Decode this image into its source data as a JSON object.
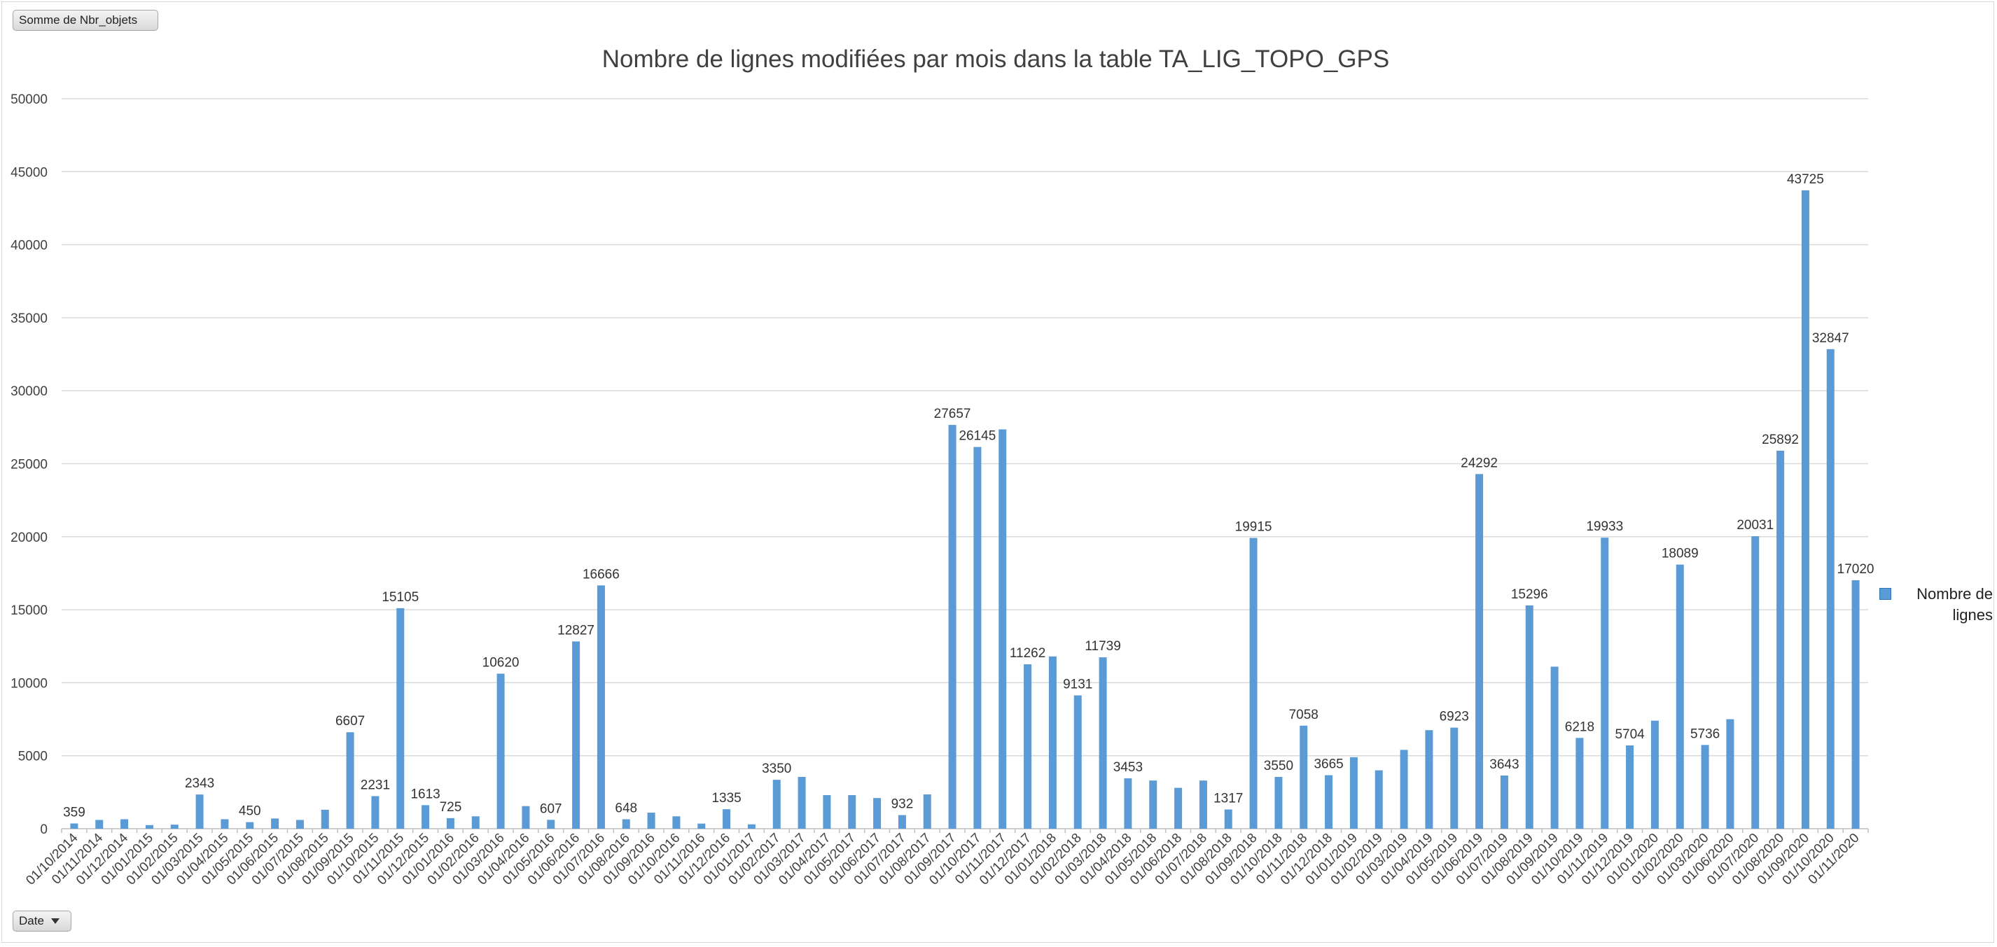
{
  "pivot": {
    "value_field_label": "Somme de Nbr_objets",
    "axis_field_label": "Date"
  },
  "colors": {
    "bar": "#5b9bd5",
    "grid": "#d9d9d9",
    "text": "#404040"
  },
  "chart_data": {
    "type": "bar",
    "title": "Nombre de lignes modifiées par mois dans la table TA_LIG_TOPO_GPS",
    "xlabel": "",
    "ylabel": "",
    "ylim": [
      0,
      50000
    ],
    "yticks": [
      0,
      5000,
      10000,
      15000,
      20000,
      25000,
      30000,
      35000,
      40000,
      45000,
      50000
    ],
    "grid": true,
    "legend_position": "right",
    "categories": [
      "01/10/2014",
      "01/11/2014",
      "01/12/2014",
      "01/01/2015",
      "01/02/2015",
      "01/03/2015",
      "01/04/2015",
      "01/05/2015",
      "01/06/2015",
      "01/07/2015",
      "01/08/2015",
      "01/09/2015",
      "01/10/2015",
      "01/11/2015",
      "01/12/2015",
      "01/01/2016",
      "01/02/2016",
      "01/03/2016",
      "01/04/2016",
      "01/05/2016",
      "01/06/2016",
      "01/07/2016",
      "01/08/2016",
      "01/09/2016",
      "01/10/2016",
      "01/11/2016",
      "01/12/2016",
      "01/01/2017",
      "01/02/2017",
      "01/03/2017",
      "01/04/2017",
      "01/05/2017",
      "01/06/2017",
      "01/07/2017",
      "01/08/2017",
      "01/09/2017",
      "01/10/2017",
      "01/11/2017",
      "01/12/2017",
      "01/01/2018",
      "01/02/2018",
      "01/03/2018",
      "01/04/2018",
      "01/05/2018",
      "01/06/2018",
      "01/07/2018",
      "01/08/2018",
      "01/09/2018",
      "01/10/2018",
      "01/11/2018",
      "01/12/2018",
      "01/01/2019",
      "01/02/2019",
      "01/03/2019",
      "01/04/2019",
      "01/05/2019",
      "01/06/2019",
      "01/07/2019",
      "01/08/2019",
      "01/09/2019",
      "01/10/2019",
      "01/11/2019",
      "01/12/2019",
      "01/01/2020",
      "01/02/2020",
      "01/03/2020",
      "01/06/2020",
      "01/07/2020",
      "01/08/2020",
      "01/09/2020",
      "01/10/2020",
      "01/11/2020"
    ],
    "series": [
      {
        "name": "Nombre de lignes",
        "values": [
          359,
          600,
          650,
          250,
          280,
          2343,
          650,
          450,
          700,
          600,
          1300,
          6607,
          2231,
          15105,
          1613,
          725,
          850,
          10620,
          1550,
          607,
          12827,
          16666,
          648,
          1100,
          850,
          350,
          1335,
          300,
          3350,
          3550,
          2300,
          2300,
          2100,
          932,
          2350,
          27657,
          26145,
          27350,
          11262,
          11800,
          9131,
          11739,
          3453,
          3300,
          2800,
          3300,
          1317,
          19915,
          3550,
          7058,
          3665,
          4900,
          4000,
          5400,
          6750,
          6923,
          24292,
          3643,
          15296,
          11100,
          6218,
          19933,
          5704,
          7400,
          18089,
          5736,
          7500,
          20031,
          25892,
          43725,
          32847,
          17020
        ]
      }
    ],
    "data_labels": [
      359,
      null,
      null,
      null,
      null,
      2343,
      null,
      450,
      null,
      null,
      null,
      6607,
      2231,
      15105,
      1613,
      725,
      null,
      10620,
      null,
      607,
      12827,
      16666,
      648,
      null,
      null,
      null,
      1335,
      null,
      3350,
      null,
      null,
      null,
      null,
      932,
      null,
      27657,
      26145,
      null,
      11262,
      null,
      9131,
      11739,
      3453,
      null,
      null,
      null,
      1317,
      19915,
      3550,
      7058,
      3665,
      null,
      null,
      null,
      null,
      6923,
      24292,
      3643,
      15296,
      null,
      6218,
      19933,
      5704,
      null,
      18089,
      5736,
      null,
      20031,
      25892,
      43725,
      32847,
      17020
    ]
  }
}
